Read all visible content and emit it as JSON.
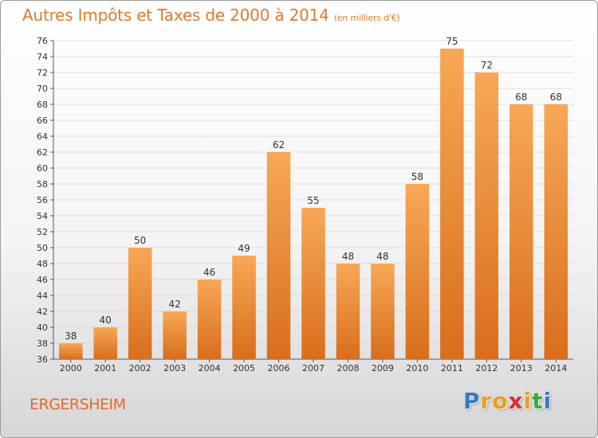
{
  "header": {
    "title": "Autres Impôts et Taxes de 2000 à 2014",
    "subtitle": "(en milliers d'€)"
  },
  "footer": {
    "commune": "ERGERSHEIM",
    "brand_letters": [
      "P",
      "r",
      "o",
      "x",
      "i",
      "t",
      "i"
    ],
    "brand_colors": [
      "#3a78c8",
      "#e8a020",
      "#e8a020",
      "#d83030",
      "#e8a020",
      "#3aaa3a",
      "#3a78c8"
    ]
  },
  "colors": {
    "bar_light": "#f7a856",
    "bar_dark": "#d86e1c",
    "title": "#e07a2e",
    "grid": "#dddddd"
  },
  "chart_data": {
    "type": "bar",
    "categories": [
      "2000",
      "2001",
      "2002",
      "2003",
      "2004",
      "2005",
      "2006",
      "2007",
      "2008",
      "2009",
      "2010",
      "2011",
      "2012",
      "2013",
      "2014"
    ],
    "values": [
      38,
      40,
      50,
      42,
      46,
      49,
      62,
      55,
      48,
      48,
      58,
      75,
      72,
      68,
      68
    ],
    "ylim": [
      36,
      76
    ],
    "yticks": [
      36,
      38,
      40,
      42,
      44,
      46,
      48,
      50,
      52,
      54,
      56,
      58,
      60,
      62,
      64,
      66,
      68,
      70,
      72,
      74,
      76
    ],
    "grid": true,
    "data_labels": true
  }
}
